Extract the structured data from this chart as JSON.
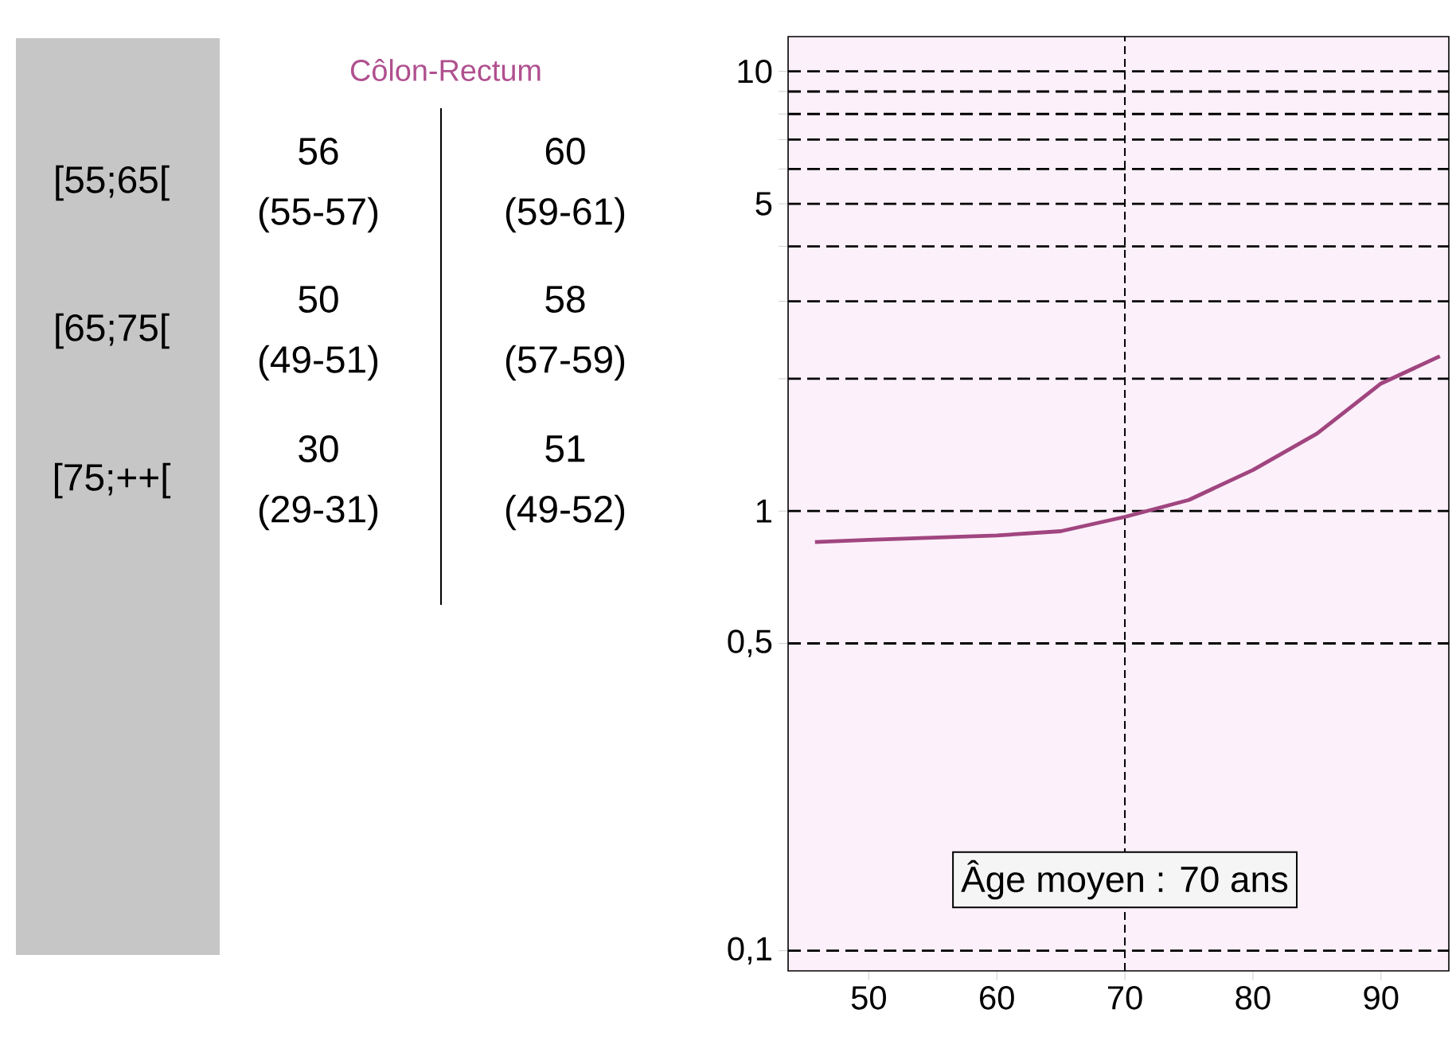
{
  "chart_data": [
    {
      "type": "other",
      "title": "Côlon-Rectum",
      "annotations": [
        "[55;65[",
        "56",
        "60",
        "(55-57)",
        "(59-61)",
        "[65;75[",
        "50",
        "58",
        "(49-51)",
        "(57-59)",
        "[75;++[",
        "30",
        "51",
        "(29-31)",
        "(49-52)"
      ]
    },
    {
      "type": "line",
      "log": "y",
      "grid": "y",
      "x": [
        45.8,
        50,
        55,
        60,
        65,
        70,
        75,
        80,
        85,
        90,
        94.6
      ],
      "series": [
        {
          "color": "#a0457f",
          "values": [
            0.85,
            0.86,
            0.87,
            0.88,
            0.9,
            0.97,
            1.06,
            1.24,
            1.5,
            1.95,
            2.25
          ]
        }
      ],
      "xlim": [
        43.7,
        95.3
      ],
      "ylim": [
        0.09,
        12
      ],
      "xticks": [
        50,
        60,
        70,
        80,
        90
      ],
      "yticks": [
        {
          "value": 0.1,
          "label": "0,1"
        },
        {
          "value": 0.5,
          "label": "0,5"
        },
        1,
        {
          "value": 2,
          "label": null
        },
        {
          "value": 3,
          "label": null
        },
        {
          "value": 4,
          "label": null
        },
        5,
        {
          "value": 6,
          "label": null
        },
        {
          "value": 7,
          "label": null
        },
        {
          "value": 8,
          "label": null
        },
        {
          "value": 9,
          "label": null
        },
        10
      ],
      "ref_lines": [
        {
          "axis": "x",
          "value": 70,
          "label": "Âge moyen : 70 ans",
          "line_style": "dashed"
        }
      ]
    }
  ]
}
